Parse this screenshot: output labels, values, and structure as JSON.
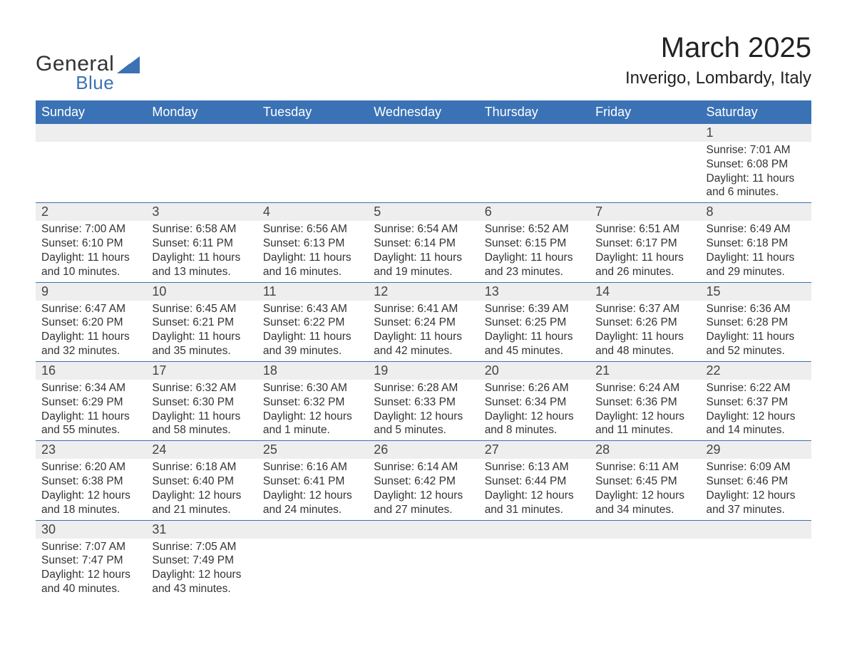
{
  "logo": {
    "text1": "General",
    "text2": "Blue",
    "icon_color": "#3a72b5"
  },
  "title": "March 2025",
  "location": "Inverigo, Lombardy, Italy",
  "colors": {
    "header_bg": "#3a72b5",
    "header_fg": "#ffffff",
    "daynum_bg": "#eeeeee",
    "row_border": "#3a72b5",
    "text": "#333333",
    "page_bg": "#ffffff"
  },
  "typography": {
    "title_fontsize": 40,
    "location_fontsize": 24,
    "weekday_fontsize": 18,
    "daynum_fontsize": 18,
    "body_fontsize": 15.5,
    "font_family": "Arial"
  },
  "layout": {
    "columns": 7,
    "week_rows": 6,
    "first_day_column_index": 6
  },
  "weekdays": [
    "Sunday",
    "Monday",
    "Tuesday",
    "Wednesday",
    "Thursday",
    "Friday",
    "Saturday"
  ],
  "days": [
    {
      "n": "1",
      "sunrise": "Sunrise: 7:01 AM",
      "sunset": "Sunset: 6:08 PM",
      "dl1": "Daylight: 11 hours",
      "dl2": "and 6 minutes."
    },
    {
      "n": "2",
      "sunrise": "Sunrise: 7:00 AM",
      "sunset": "Sunset: 6:10 PM",
      "dl1": "Daylight: 11 hours",
      "dl2": "and 10 minutes."
    },
    {
      "n": "3",
      "sunrise": "Sunrise: 6:58 AM",
      "sunset": "Sunset: 6:11 PM",
      "dl1": "Daylight: 11 hours",
      "dl2": "and 13 minutes."
    },
    {
      "n": "4",
      "sunrise": "Sunrise: 6:56 AM",
      "sunset": "Sunset: 6:13 PM",
      "dl1": "Daylight: 11 hours",
      "dl2": "and 16 minutes."
    },
    {
      "n": "5",
      "sunrise": "Sunrise: 6:54 AM",
      "sunset": "Sunset: 6:14 PM",
      "dl1": "Daylight: 11 hours",
      "dl2": "and 19 minutes."
    },
    {
      "n": "6",
      "sunrise": "Sunrise: 6:52 AM",
      "sunset": "Sunset: 6:15 PM",
      "dl1": "Daylight: 11 hours",
      "dl2": "and 23 minutes."
    },
    {
      "n": "7",
      "sunrise": "Sunrise: 6:51 AM",
      "sunset": "Sunset: 6:17 PM",
      "dl1": "Daylight: 11 hours",
      "dl2": "and 26 minutes."
    },
    {
      "n": "8",
      "sunrise": "Sunrise: 6:49 AM",
      "sunset": "Sunset: 6:18 PM",
      "dl1": "Daylight: 11 hours",
      "dl2": "and 29 minutes."
    },
    {
      "n": "9",
      "sunrise": "Sunrise: 6:47 AM",
      "sunset": "Sunset: 6:20 PM",
      "dl1": "Daylight: 11 hours",
      "dl2": "and 32 minutes."
    },
    {
      "n": "10",
      "sunrise": "Sunrise: 6:45 AM",
      "sunset": "Sunset: 6:21 PM",
      "dl1": "Daylight: 11 hours",
      "dl2": "and 35 minutes."
    },
    {
      "n": "11",
      "sunrise": "Sunrise: 6:43 AM",
      "sunset": "Sunset: 6:22 PM",
      "dl1": "Daylight: 11 hours",
      "dl2": "and 39 minutes."
    },
    {
      "n": "12",
      "sunrise": "Sunrise: 6:41 AM",
      "sunset": "Sunset: 6:24 PM",
      "dl1": "Daylight: 11 hours",
      "dl2": "and 42 minutes."
    },
    {
      "n": "13",
      "sunrise": "Sunrise: 6:39 AM",
      "sunset": "Sunset: 6:25 PM",
      "dl1": "Daylight: 11 hours",
      "dl2": "and 45 minutes."
    },
    {
      "n": "14",
      "sunrise": "Sunrise: 6:37 AM",
      "sunset": "Sunset: 6:26 PM",
      "dl1": "Daylight: 11 hours",
      "dl2": "and 48 minutes."
    },
    {
      "n": "15",
      "sunrise": "Sunrise: 6:36 AM",
      "sunset": "Sunset: 6:28 PM",
      "dl1": "Daylight: 11 hours",
      "dl2": "and 52 minutes."
    },
    {
      "n": "16",
      "sunrise": "Sunrise: 6:34 AM",
      "sunset": "Sunset: 6:29 PM",
      "dl1": "Daylight: 11 hours",
      "dl2": "and 55 minutes."
    },
    {
      "n": "17",
      "sunrise": "Sunrise: 6:32 AM",
      "sunset": "Sunset: 6:30 PM",
      "dl1": "Daylight: 11 hours",
      "dl2": "and 58 minutes."
    },
    {
      "n": "18",
      "sunrise": "Sunrise: 6:30 AM",
      "sunset": "Sunset: 6:32 PM",
      "dl1": "Daylight: 12 hours",
      "dl2": "and 1 minute."
    },
    {
      "n": "19",
      "sunrise": "Sunrise: 6:28 AM",
      "sunset": "Sunset: 6:33 PM",
      "dl1": "Daylight: 12 hours",
      "dl2": "and 5 minutes."
    },
    {
      "n": "20",
      "sunrise": "Sunrise: 6:26 AM",
      "sunset": "Sunset: 6:34 PM",
      "dl1": "Daylight: 12 hours",
      "dl2": "and 8 minutes."
    },
    {
      "n": "21",
      "sunrise": "Sunrise: 6:24 AM",
      "sunset": "Sunset: 6:36 PM",
      "dl1": "Daylight: 12 hours",
      "dl2": "and 11 minutes."
    },
    {
      "n": "22",
      "sunrise": "Sunrise: 6:22 AM",
      "sunset": "Sunset: 6:37 PM",
      "dl1": "Daylight: 12 hours",
      "dl2": "and 14 minutes."
    },
    {
      "n": "23",
      "sunrise": "Sunrise: 6:20 AM",
      "sunset": "Sunset: 6:38 PM",
      "dl1": "Daylight: 12 hours",
      "dl2": "and 18 minutes."
    },
    {
      "n": "24",
      "sunrise": "Sunrise: 6:18 AM",
      "sunset": "Sunset: 6:40 PM",
      "dl1": "Daylight: 12 hours",
      "dl2": "and 21 minutes."
    },
    {
      "n": "25",
      "sunrise": "Sunrise: 6:16 AM",
      "sunset": "Sunset: 6:41 PM",
      "dl1": "Daylight: 12 hours",
      "dl2": "and 24 minutes."
    },
    {
      "n": "26",
      "sunrise": "Sunrise: 6:14 AM",
      "sunset": "Sunset: 6:42 PM",
      "dl1": "Daylight: 12 hours",
      "dl2": "and 27 minutes."
    },
    {
      "n": "27",
      "sunrise": "Sunrise: 6:13 AM",
      "sunset": "Sunset: 6:44 PM",
      "dl1": "Daylight: 12 hours",
      "dl2": "and 31 minutes."
    },
    {
      "n": "28",
      "sunrise": "Sunrise: 6:11 AM",
      "sunset": "Sunset: 6:45 PM",
      "dl1": "Daylight: 12 hours",
      "dl2": "and 34 minutes."
    },
    {
      "n": "29",
      "sunrise": "Sunrise: 6:09 AM",
      "sunset": "Sunset: 6:46 PM",
      "dl1": "Daylight: 12 hours",
      "dl2": "and 37 minutes."
    },
    {
      "n": "30",
      "sunrise": "Sunrise: 7:07 AM",
      "sunset": "Sunset: 7:47 PM",
      "dl1": "Daylight: 12 hours",
      "dl2": "and 40 minutes."
    },
    {
      "n": "31",
      "sunrise": "Sunrise: 7:05 AM",
      "sunset": "Sunset: 7:49 PM",
      "dl1": "Daylight: 12 hours",
      "dl2": "and 43 minutes."
    }
  ]
}
